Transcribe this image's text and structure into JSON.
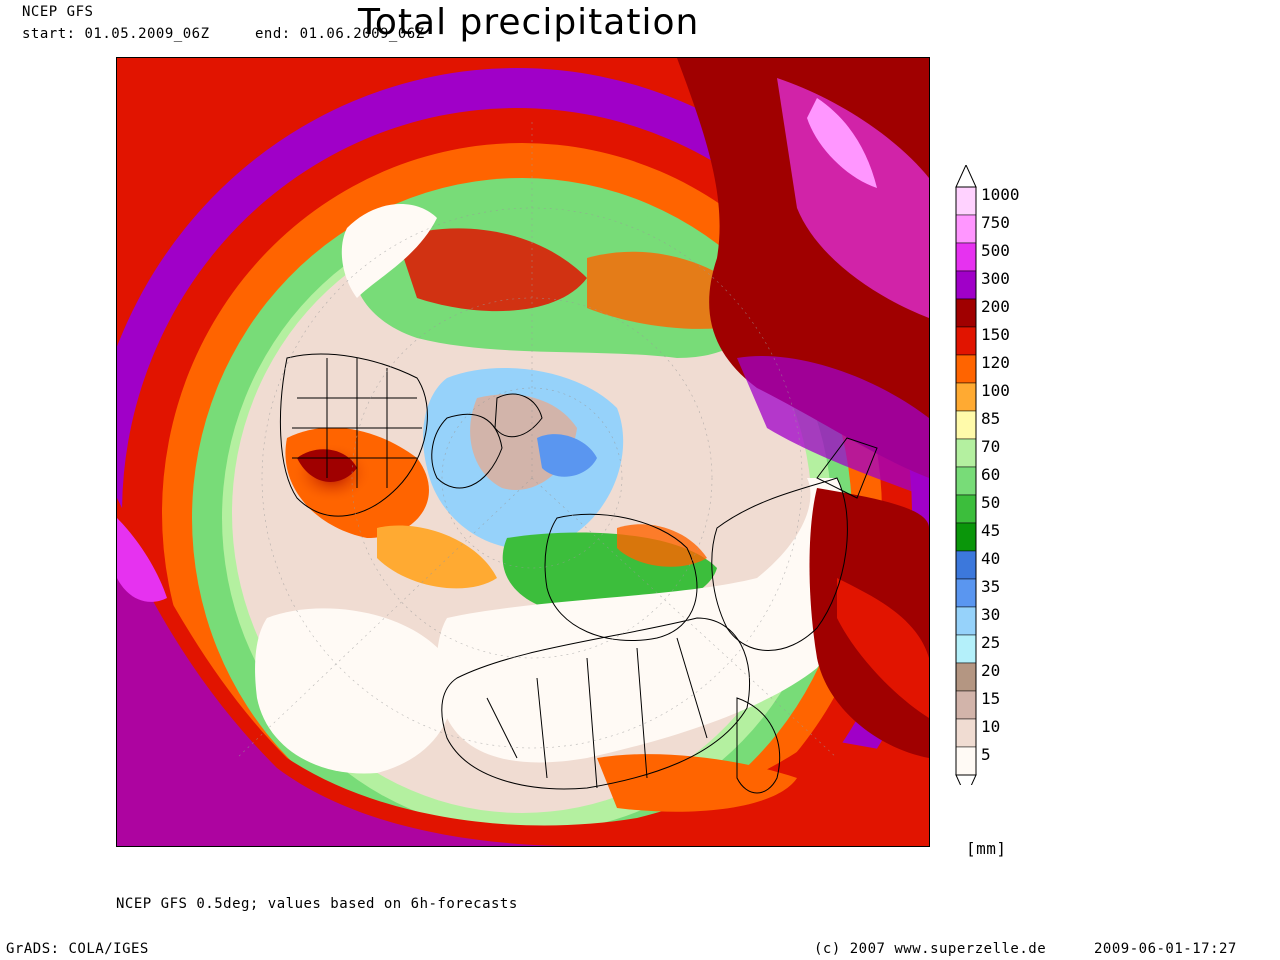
{
  "header": {
    "model": "NCEP GFS",
    "start": "start: 01.05.2009_06Z",
    "end": "end: 01.06.2009_06Z",
    "title": "Total precipitation"
  },
  "legend": {
    "unit": "[mm]",
    "levels": [
      {
        "label": "1000",
        "color": "#ffd2ff"
      },
      {
        "label": "750",
        "color": "#ff96ff"
      },
      {
        "label": "500",
        "color": "#e632f0"
      },
      {
        "label": "300",
        "color": "#a000c8"
      },
      {
        "label": "200",
        "color": "#a00000"
      },
      {
        "label": "150",
        "color": "#e11400"
      },
      {
        "label": "120",
        "color": "#ff6400"
      },
      {
        "label": "100",
        "color": "#ffaa32"
      },
      {
        "label": "85",
        "color": "#fffaaa"
      },
      {
        "label": "70",
        "color": "#b4f0a0"
      },
      {
        "label": "60",
        "color": "#78dc78"
      },
      {
        "label": "50",
        "color": "#3cbe3c"
      },
      {
        "label": "45",
        "color": "#0a960a"
      },
      {
        "label": "40",
        "color": "#3c78dc"
      },
      {
        "label": "35",
        "color": "#5a96f0"
      },
      {
        "label": "30",
        "color": "#96d2fa"
      },
      {
        "label": "25",
        "color": "#b4f0fa"
      },
      {
        "label": "20",
        "color": "#b49682"
      },
      {
        "label": "15",
        "color": "#d2b4aa"
      },
      {
        "label": "10",
        "color": "#f0dcd2"
      },
      {
        "label": "5",
        "color": "#fffaf5"
      }
    ]
  },
  "footer": {
    "note": "NCEP GFS 0.5deg; values based on 6h-forecasts",
    "software": "GrADS: COLA/IGES",
    "copyright": "(c) 2007 www.superzelle.de",
    "timestamp": "2009-06-01-17:27"
  }
}
